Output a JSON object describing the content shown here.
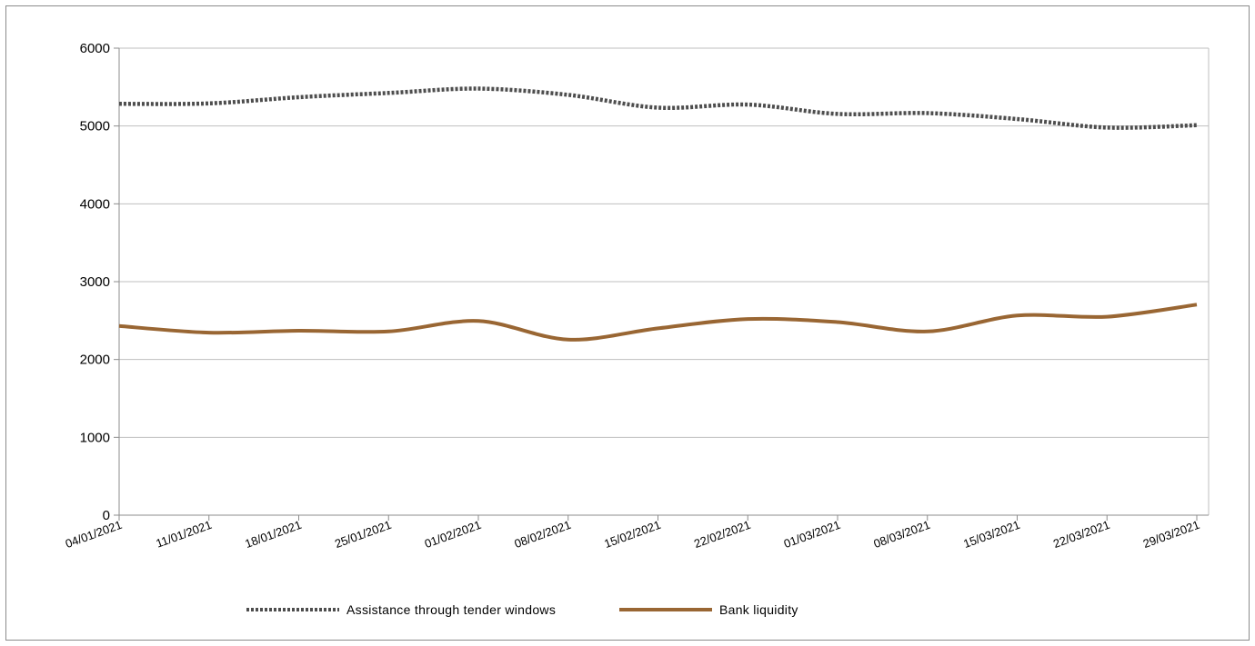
{
  "chart_data": {
    "type": "line",
    "x": [
      "04/01/2021",
      "11/01/2021",
      "18/01/2021",
      "25/01/2021",
      "01/02/2021",
      "08/02/2021",
      "15/02/2021",
      "22/02/2021",
      "01/03/2021",
      "08/03/2021",
      "15/03/2021",
      "22/03/2021",
      "29/03/2021"
    ],
    "series": [
      {
        "name": "Assistance through tender windows",
        "values": [
          5285,
          5290,
          5370,
          5425,
          5480,
          5400,
          5235,
          5275,
          5155,
          5165,
          5090,
          4980,
          5010
        ],
        "color": "#4d4d4d",
        "style": "dotted"
      },
      {
        "name": "Bank liquidity",
        "values": [
          2430,
          2345,
          2370,
          2360,
          2495,
          2255,
          2400,
          2520,
          2480,
          2360,
          2565,
          2550,
          2705
        ],
        "color": "#996633",
        "style": "solid"
      }
    ],
    "y_ticks": [
      "0",
      "1000",
      "2000",
      "3000",
      "4000",
      "5000",
      "6000"
    ],
    "ylim": [
      0,
      6000
    ],
    "grid": true,
    "legend_position": "bottom"
  }
}
